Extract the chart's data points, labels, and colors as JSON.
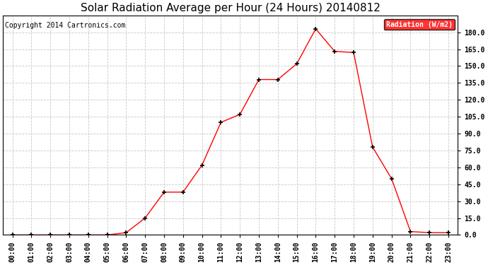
{
  "title": "Solar Radiation Average per Hour (24 Hours) 20140812",
  "copyright": "Copyright 2014 Cartronics.com",
  "legend_label": "Radiation (W/m2)",
  "hours": [
    "00:00",
    "01:00",
    "02:00",
    "03:00",
    "04:00",
    "05:00",
    "06:00",
    "07:00",
    "08:00",
    "09:00",
    "10:00",
    "11:00",
    "12:00",
    "13:00",
    "14:00",
    "15:00",
    "16:00",
    "17:00",
    "18:00",
    "19:00",
    "20:00",
    "21:00",
    "22:00",
    "23:00"
  ],
  "values": [
    0.0,
    0.0,
    0.0,
    0.0,
    0.0,
    0.0,
    2.0,
    15.0,
    38.0,
    38.0,
    62.0,
    100.0,
    107.0,
    138.0,
    138.0,
    152.0,
    183.0,
    163.0,
    162.0,
    78.0,
    50.0,
    3.0,
    2.0,
    2.0
  ],
  "ylim": [
    0,
    195
  ],
  "yticks": [
    0.0,
    15.0,
    30.0,
    45.0,
    60.0,
    75.0,
    90.0,
    105.0,
    120.0,
    135.0,
    150.0,
    165.0,
    180.0
  ],
  "line_color": "red",
  "marker": "+",
  "marker_color": "black",
  "grid_color": "#c8c8c8",
  "background_color": "white",
  "title_fontsize": 11,
  "label_fontsize": 7,
  "copyright_fontsize": 7,
  "legend_bg": "red",
  "legend_text_color": "white"
}
